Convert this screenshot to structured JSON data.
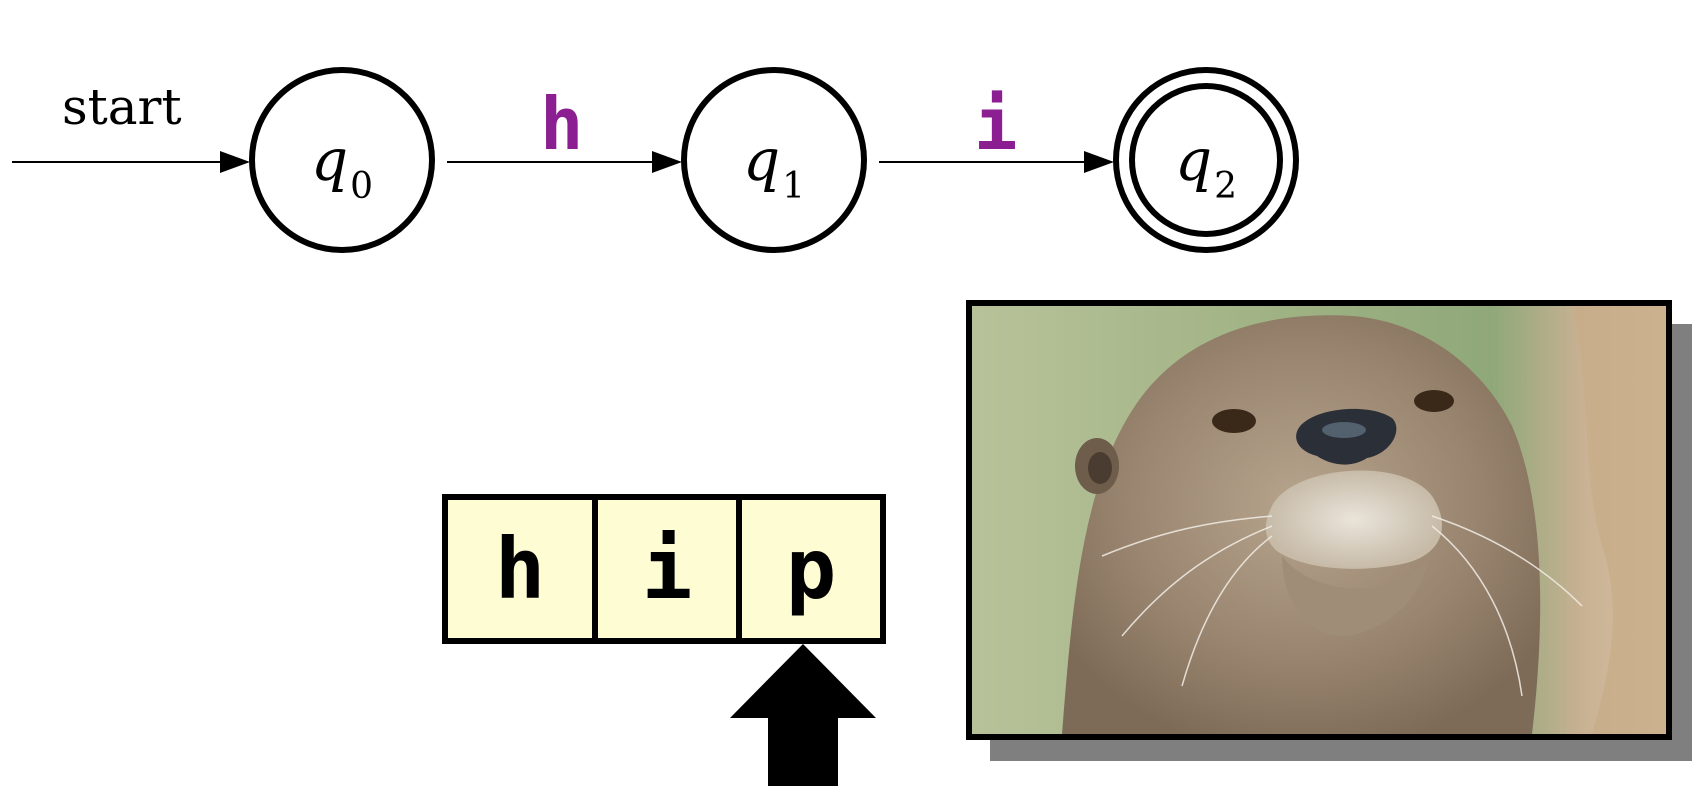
{
  "automaton": {
    "start_label": "start",
    "states": [
      {
        "name": "q",
        "index": "0",
        "accepting": false
      },
      {
        "name": "q",
        "index": "1",
        "accepting": false
      },
      {
        "name": "q",
        "index": "2",
        "accepting": true
      }
    ],
    "transitions": [
      {
        "from": "q0",
        "to": "q1",
        "symbol": "h"
      },
      {
        "from": "q1",
        "to": "q2",
        "symbol": "i"
      }
    ],
    "colors": {
      "symbol": "#8b1e90",
      "stroke": "#000000"
    }
  },
  "tape": {
    "cells": [
      "h",
      "i",
      "p"
    ],
    "head_position": 2,
    "cell_color": "#fdfcd3"
  },
  "photo": {
    "icon": "otter-photo"
  }
}
